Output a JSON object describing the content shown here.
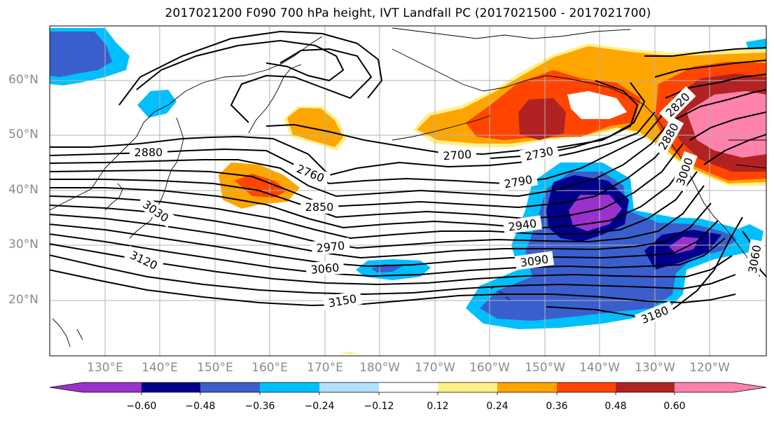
{
  "title": "2017021200 F090 700 hPa height, IVT Landfall PC (2017021500 - 2017021700)",
  "lat_labels": [
    "60°N",
    "50°N",
    "40°N",
    "30°N",
    "20°N"
  ],
  "lon_labels": [
    "130°E",
    "140°E",
    "150°E",
    "160°E",
    "170°E",
    "180°W",
    "170°W",
    "160°W",
    "150°W",
    "140°W",
    "130°W",
    "120°W"
  ],
  "contour_labels": [
    "2880",
    "2760",
    "2850",
    "2700",
    "2730",
    "2790",
    "2940",
    "2970",
    "3060",
    "3090",
    "3150",
    "3180",
    "3120",
    "3030",
    "2820",
    "2880",
    "3000",
    "3060"
  ],
  "colorbar": {
    "ticks": [
      "−0.60",
      "−0.48",
      "−0.36",
      "−0.24",
      "−0.12",
      "0.12",
      "0.24",
      "0.36",
      "0.48",
      "0.60"
    ],
    "colors": [
      "#9932cc",
      "#00008b",
      "#3a5fcd",
      "#00bfff",
      "#b0e2ff",
      "#ffffff",
      "#fff08a",
      "#ffa500",
      "#ff4500",
      "#b22222",
      "#ff82ab"
    ]
  },
  "palette": {
    "purple": "#9932cc",
    "navy": "#00008b",
    "blue": "#3a5fcd",
    "cyan": "#00bfff",
    "yellow": "#fff08a",
    "orange": "#ffa500",
    "red": "#ff4500",
    "darkred": "#b22222",
    "pink": "#ff82ab",
    "grid": "#b3b3b3"
  }
}
